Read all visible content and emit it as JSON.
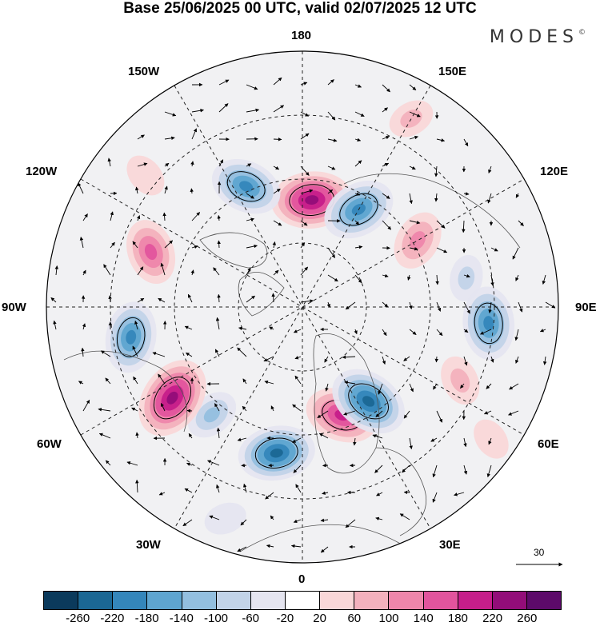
{
  "title": "Base 25/06/2025 00 UTC, valid 02/07/2025 12 UTC",
  "logo": "MODES",
  "logo_mark": "©",
  "longitude_labels": {
    "lon_180": "180",
    "lon_150w": "150W",
    "lon_150e": "150E",
    "lon_120w": "120W",
    "lon_120e": "120E",
    "lon_90w": "90W",
    "lon_90e": "90E",
    "lon_60w": "60W",
    "lon_60e": "60E",
    "lon_30w": "30W",
    "lon_30e": "30E",
    "lon_0": "0"
  },
  "wind_scale_label": "30",
  "colorbar": {
    "colors": [
      "#0b3a5c",
      "#1b6794",
      "#3486bb",
      "#5ea5d0",
      "#93bfdf",
      "#c2d3e8",
      "#e5e5f0",
      "#ffffff",
      "#f9d7d8",
      "#f3b1bd",
      "#ee86ab",
      "#e2549d",
      "#c61e8a",
      "#930d79",
      "#5d0a6a"
    ],
    "ticks": [
      "-260",
      "-220",
      "-180",
      "-140",
      "-100",
      "-60",
      "-20",
      "20",
      "60",
      "100",
      "140",
      "180",
      "220",
      "260"
    ]
  },
  "anomalies": [
    {
      "lon": 175,
      "r": 0.42,
      "value": 240
    },
    {
      "lon": -155,
      "r": 0.52,
      "value": -190
    },
    {
      "lon": 150,
      "r": 0.44,
      "value": -200
    },
    {
      "lon": 120,
      "r": 0.52,
      "value": 130
    },
    {
      "lon": 100,
      "r": 0.65,
      "value": -60
    },
    {
      "lon": 85,
      "r": 0.73,
      "value": -200
    },
    {
      "lon": 65,
      "r": 0.68,
      "value": 80
    },
    {
      "lon": 20,
      "r": 0.45,
      "value": 200
    },
    {
      "lon": 35,
      "r": 0.45,
      "value": -230
    },
    {
      "lon": -10,
      "r": 0.58,
      "value": -220
    },
    {
      "lon": -40,
      "r": 0.55,
      "value": -100
    },
    {
      "lon": -55,
      "r": 0.62,
      "value": 250
    },
    {
      "lon": -80,
      "r": 0.68,
      "value": -190
    },
    {
      "lon": -110,
      "r": 0.63,
      "value": 160
    },
    {
      "lon": -20,
      "r": 0.88,
      "value": -40
    },
    {
      "lon": 150,
      "r": 0.85,
      "value": 60
    },
    {
      "lon": -130,
      "r": 0.8,
      "value": 50
    },
    {
      "lon": 55,
      "r": 0.9,
      "value": 40
    }
  ]
}
